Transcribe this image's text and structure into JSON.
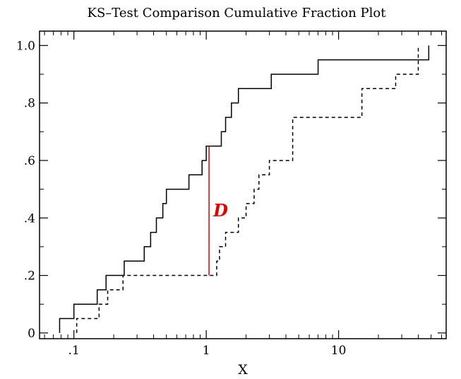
{
  "chart_data": {
    "type": "line",
    "title": "KS–Test Comparison Cumulative Fraction Plot",
    "xlabel": "X",
    "ylabel": "",
    "x_scale": "log",
    "xlim": [
      0.055,
      65
    ],
    "ylim": [
      -0.02,
      1.05
    ],
    "x_ticks": [
      {
        "value": 0.1,
        "label": ".1"
      },
      {
        "value": 1,
        "label": "1"
      },
      {
        "value": 10,
        "label": "10"
      }
    ],
    "y_ticks": [
      {
        "value": 0,
        "label": "0"
      },
      {
        "value": 0.2,
        "label": ".2"
      },
      {
        "value": 0.4,
        "label": ".4"
      },
      {
        "value": 0.6,
        "label": ".6"
      },
      {
        "value": 0.8,
        "label": ".8"
      },
      {
        "value": 1.0,
        "label": "1.0"
      }
    ],
    "grid": false,
    "series": [
      {
        "style": "solid",
        "color": "#000000",
        "x": [
          0.078,
          0.1,
          0.15,
          0.175,
          0.24,
          0.34,
          0.38,
          0.42,
          0.47,
          0.5,
          0.52,
          0.74,
          0.93,
          1.0,
          1.3,
          1.4,
          1.55,
          1.75,
          3.1,
          7.0,
          48
        ],
        "y": [
          0.05,
          0.1,
          0.15,
          0.2,
          0.25,
          0.3,
          0.35,
          0.4,
          0.45,
          0.5,
          0.5,
          0.55,
          0.6,
          0.65,
          0.7,
          0.75,
          0.8,
          0.85,
          0.9,
          0.95,
          1.0
        ]
      },
      {
        "style": "dashed",
        "color": "#000000",
        "x": [
          0.105,
          0.155,
          0.18,
          0.235,
          0.51,
          1.2,
          1.26,
          1.4,
          1.75,
          2.0,
          2.3,
          2.5,
          3.0,
          4.5,
          15,
          27,
          40
        ],
        "y": [
          0.05,
          0.1,
          0.15,
          0.2,
          0.2,
          0.25,
          0.3,
          0.35,
          0.4,
          0.45,
          0.5,
          0.55,
          0.6,
          0.75,
          0.85,
          0.9,
          1.0
        ]
      }
    ],
    "annotations": [
      {
        "text": "D",
        "x": 1.05,
        "y_from": 0.2,
        "y_to": 0.65,
        "color": "#e00000"
      }
    ]
  }
}
